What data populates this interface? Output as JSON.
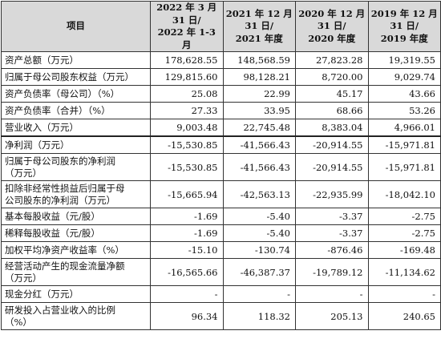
{
  "header": {
    "item": "项目",
    "col1": "2022 年 3 月\n31 日/\n2022 年 1-3 月",
    "col2": "2021 年 12 月\n31 日/\n2021 年度",
    "col3": "2020 年 12 月\n31 日/\n2020 年度",
    "col4": "2019 年 12 月\n31 日/\n2019 年度"
  },
  "rows": [
    {
      "label": "资产总额（万元）",
      "v": [
        "178,628.55",
        "148,568.59",
        "27,823.28",
        "19,319.55"
      ]
    },
    {
      "label": "归属于母公司股东权益（万元）",
      "v": [
        "129,815.60",
        "98,128.21",
        "8,720.00",
        "9,029.74"
      ]
    },
    {
      "label": "资产负债率（母公司）（%）",
      "v": [
        "25.08",
        "22.99",
        "45.17",
        "43.66"
      ]
    },
    {
      "label": "资产负债率（合并）（%）",
      "v": [
        "27.33",
        "33.95",
        "68.66",
        "53.26"
      ]
    },
    {
      "label": "营业收入（万元）",
      "v": [
        "9,003.48",
        "22,745.48",
        "8,383.04",
        "4,966.01"
      ]
    },
    {
      "label": "净利润（万元）",
      "v": [
        "-15,530.85",
        "-41,566.43",
        "-20,914.55",
        "-15,971.81"
      ]
    },
    {
      "label": "归属于母公司股东的净利润\n（万元）",
      "v": [
        "-15,530.85",
        "-41,566.43",
        "-20,914.55",
        "-15,971.81"
      ]
    },
    {
      "label": "扣除非经常性损益后归属于母\n公司股东的净利润（万元）",
      "v": [
        "-15,665.94",
        "-42,563.13",
        "-22,935.99",
        "-18,042.10"
      ]
    },
    {
      "label": "基本每股收益（元/股）",
      "v": [
        "-1.69",
        "-5.40",
        "-3.37",
        "-2.75"
      ]
    },
    {
      "label": "稀释每股收益（元/股）",
      "v": [
        "-1.69",
        "-5.40",
        "-3.37",
        "-2.75"
      ]
    },
    {
      "label": "加权平均净资产收益率（%）",
      "v": [
        "-15.10",
        "-130.74",
        "-876.46",
        "-169.48"
      ]
    },
    {
      "label": "经营活动产生的现金流量净额\n（万元）",
      "v": [
        "-16,565.66",
        "-46,387.37",
        "-19,789.12",
        "-11,134.62"
      ]
    },
    {
      "label": "现金分红（万元）",
      "v": [
        "-",
        "-",
        "-",
        "-"
      ]
    },
    {
      "label": "研发投入占营业收入的比例\n（%）",
      "v": [
        "96.34",
        "118.32",
        "205.13",
        "240.65"
      ]
    }
  ]
}
